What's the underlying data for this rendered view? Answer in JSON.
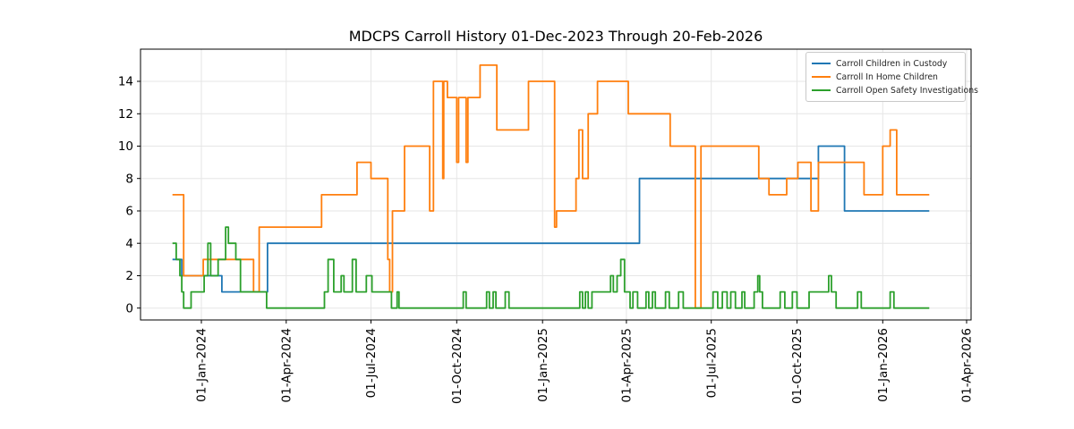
{
  "chart_data": {
    "type": "line",
    "step": "post",
    "title": "MDCPS Carroll History 01-Dec-2023 Through 20-Feb-2026",
    "xlabel": "",
    "ylabel": "",
    "grid": true,
    "legend_position": "upper right",
    "y_ticks": [
      0,
      2,
      4,
      6,
      8,
      10,
      12,
      14
    ],
    "ylim": [
      -0.75,
      16.0
    ],
    "x_ticks": [
      {
        "label": "01-Jan-2024",
        "date": "2024-01-01"
      },
      {
        "label": "01-Apr-2024",
        "date": "2024-04-01"
      },
      {
        "label": "01-Jul-2024",
        "date": "2024-07-01"
      },
      {
        "label": "01-Oct-2024",
        "date": "2024-10-01"
      },
      {
        "label": "01-Jan-2025",
        "date": "2025-01-01"
      },
      {
        "label": "01-Apr-2025",
        "date": "2025-04-01"
      },
      {
        "label": "01-Jul-2025",
        "date": "2025-07-01"
      },
      {
        "label": "01-Oct-2025",
        "date": "2025-10-01"
      },
      {
        "label": "01-Jan-2026",
        "date": "2026-01-01"
      },
      {
        "label": "01-Apr-2026",
        "date": "2026-04-01"
      }
    ],
    "start_date": "2023-12-01",
    "end_date": "2026-02-20",
    "series": [
      {
        "name": "Carroll Children in Custody",
        "color": "#1f77b4",
        "points": [
          [
            "2023-12-01",
            3
          ],
          [
            "2023-12-11",
            2
          ],
          [
            "2024-01-23",
            1
          ],
          [
            "2024-03-12",
            4
          ],
          [
            "2025-04-15",
            8
          ],
          [
            "2025-10-24",
            10
          ],
          [
            "2025-11-21",
            6
          ],
          [
            "2026-02-20",
            6
          ]
        ]
      },
      {
        "name": "Carroll In Home Children",
        "color": "#ff7f0e",
        "points": [
          [
            "2023-12-01",
            7
          ],
          [
            "2023-12-13",
            2
          ],
          [
            "2024-01-03",
            3
          ],
          [
            "2024-02-26",
            1
          ],
          [
            "2024-03-03",
            5
          ],
          [
            "2024-05-09",
            7
          ],
          [
            "2024-06-16",
            9
          ],
          [
            "2024-07-01",
            8
          ],
          [
            "2024-07-19",
            3
          ],
          [
            "2024-07-21",
            1
          ],
          [
            "2024-07-24",
            6
          ],
          [
            "2024-08-06",
            10
          ],
          [
            "2024-09-02",
            6
          ],
          [
            "2024-09-06",
            14
          ],
          [
            "2024-09-16",
            8
          ],
          [
            "2024-09-17",
            14
          ],
          [
            "2024-09-21",
            13
          ],
          [
            "2024-10-01",
            9
          ],
          [
            "2024-10-03",
            13
          ],
          [
            "2024-10-11",
            9
          ],
          [
            "2024-10-13",
            13
          ],
          [
            "2024-10-26",
            15
          ],
          [
            "2024-11-13",
            11
          ],
          [
            "2024-12-17",
            14
          ],
          [
            "2025-01-14",
            5
          ],
          [
            "2025-01-16",
            6
          ],
          [
            "2025-02-06",
            8
          ],
          [
            "2025-02-09",
            11
          ],
          [
            "2025-02-13",
            8
          ],
          [
            "2025-02-19",
            12
          ],
          [
            "2025-03-01",
            14
          ],
          [
            "2025-04-03",
            12
          ],
          [
            "2025-05-18",
            10
          ],
          [
            "2025-06-14",
            0
          ],
          [
            "2025-06-20",
            10
          ],
          [
            "2025-08-21",
            8
          ],
          [
            "2025-09-01",
            7
          ],
          [
            "2025-09-20",
            8
          ],
          [
            "2025-10-02",
            9
          ],
          [
            "2025-10-16",
            6
          ],
          [
            "2025-10-24",
            9
          ],
          [
            "2025-12-12",
            7
          ],
          [
            "2026-01-01",
            10
          ],
          [
            "2026-01-09",
            11
          ],
          [
            "2026-01-16",
            7
          ],
          [
            "2026-02-20",
            7
          ]
        ]
      },
      {
        "name": "Carroll Open Safety Investigations",
        "color": "#2ca02c",
        "points": [
          [
            "2023-12-01",
            4
          ],
          [
            "2023-12-05",
            3
          ],
          [
            "2023-12-09",
            2
          ],
          [
            "2023-12-11",
            1
          ],
          [
            "2023-12-13",
            0
          ],
          [
            "2023-12-21",
            1
          ],
          [
            "2024-01-04",
            2
          ],
          [
            "2024-01-08",
            4
          ],
          [
            "2024-01-11",
            2
          ],
          [
            "2024-01-19",
            3
          ],
          [
            "2024-01-27",
            5
          ],
          [
            "2024-01-30",
            4
          ],
          [
            "2024-02-07",
            3
          ],
          [
            "2024-02-12",
            1
          ],
          [
            "2024-03-11",
            0
          ],
          [
            "2024-05-12",
            1
          ],
          [
            "2024-05-16",
            3
          ],
          [
            "2024-05-22",
            1
          ],
          [
            "2024-05-30",
            2
          ],
          [
            "2024-06-02",
            1
          ],
          [
            "2024-06-11",
            3
          ],
          [
            "2024-06-15",
            1
          ],
          [
            "2024-06-26",
            2
          ],
          [
            "2024-07-02",
            1
          ],
          [
            "2024-07-23",
            0
          ],
          [
            "2024-07-29",
            1
          ],
          [
            "2024-07-31",
            0
          ],
          [
            "2024-10-08",
            1
          ],
          [
            "2024-10-11",
            0
          ],
          [
            "2024-11-02",
            1
          ],
          [
            "2024-11-05",
            0
          ],
          [
            "2024-11-09",
            1
          ],
          [
            "2024-11-12",
            0
          ],
          [
            "2024-11-22",
            1
          ],
          [
            "2024-11-26",
            0
          ],
          [
            "2025-02-10",
            1
          ],
          [
            "2025-02-13",
            0
          ],
          [
            "2025-02-16",
            1
          ],
          [
            "2025-02-19",
            0
          ],
          [
            "2025-02-23",
            1
          ],
          [
            "2025-03-15",
            2
          ],
          [
            "2025-03-18",
            1
          ],
          [
            "2025-03-22",
            2
          ],
          [
            "2025-03-26",
            3
          ],
          [
            "2025-03-30",
            1
          ],
          [
            "2025-04-05",
            0
          ],
          [
            "2025-04-08",
            1
          ],
          [
            "2025-04-13",
            0
          ],
          [
            "2025-04-22",
            1
          ],
          [
            "2025-04-25",
            0
          ],
          [
            "2025-04-29",
            1
          ],
          [
            "2025-05-02",
            0
          ],
          [
            "2025-05-13",
            1
          ],
          [
            "2025-05-17",
            0
          ],
          [
            "2025-05-27",
            1
          ],
          [
            "2025-06-01",
            0
          ],
          [
            "2025-07-03",
            1
          ],
          [
            "2025-07-08",
            0
          ],
          [
            "2025-07-13",
            1
          ],
          [
            "2025-07-18",
            0
          ],
          [
            "2025-07-22",
            1
          ],
          [
            "2025-07-27",
            0
          ],
          [
            "2025-08-03",
            1
          ],
          [
            "2025-08-06",
            0
          ],
          [
            "2025-08-16",
            1
          ],
          [
            "2025-08-20",
            2
          ],
          [
            "2025-08-22",
            1
          ],
          [
            "2025-08-25",
            0
          ],
          [
            "2025-09-13",
            1
          ],
          [
            "2025-09-18",
            0
          ],
          [
            "2025-09-26",
            1
          ],
          [
            "2025-10-01",
            0
          ],
          [
            "2025-10-14",
            1
          ],
          [
            "2025-11-04",
            2
          ],
          [
            "2025-11-07",
            1
          ],
          [
            "2025-11-12",
            0
          ],
          [
            "2025-12-05",
            1
          ],
          [
            "2025-12-09",
            0
          ],
          [
            "2026-01-09",
            1
          ],
          [
            "2026-01-13",
            0
          ],
          [
            "2026-02-20",
            0
          ]
        ]
      }
    ]
  }
}
